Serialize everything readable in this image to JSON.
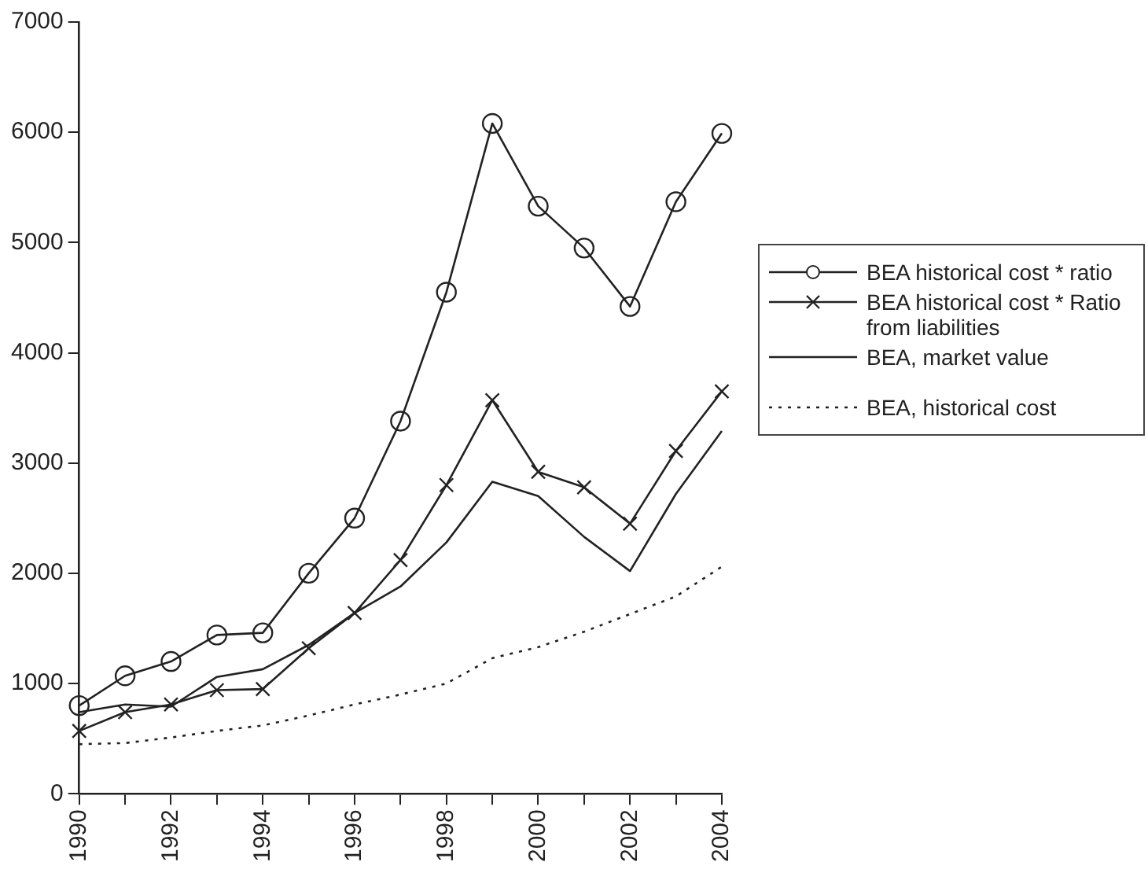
{
  "chart_data": {
    "type": "line",
    "x": [
      1990,
      1991,
      1992,
      1993,
      1994,
      1995,
      1996,
      1997,
      1998,
      1999,
      2000,
      2001,
      2002,
      2003,
      2004
    ],
    "xlim": [
      1990,
      2004
    ],
    "xticks": [
      1990,
      {
        "value": 1991,
        "label": null
      },
      1992,
      {
        "value": 1993,
        "label": null
      },
      1994,
      {
        "value": 1995,
        "label": null
      },
      1996,
      {
        "value": 1997,
        "label": null
      },
      1998,
      {
        "value": 1999,
        "label": null
      },
      2000,
      {
        "value": 2001,
        "label": null
      },
      2002,
      {
        "value": 2003,
        "label": null
      },
      2004
    ],
    "ylim": [
      0,
      7000
    ],
    "yticks": [
      0,
      1000,
      2000,
      3000,
      4000,
      5000,
      6000,
      7000
    ],
    "grid": false,
    "legend": "right",
    "series": [
      {
        "name": "BEA historical cost * ratio",
        "color": "#222222",
        "marker": "circle",
        "line_style": "solid",
        "values": [
          800,
          1070,
          1200,
          1440,
          1460,
          2000,
          2500,
          3380,
          4550,
          6080,
          5330,
          4950,
          4420,
          5370,
          5990
        ]
      },
      {
        "name": "BEA historical cost * Ratio from liabilities",
        "color": "#222222",
        "marker": "cross",
        "line_style": "solid",
        "values": [
          570,
          740,
          810,
          940,
          950,
          1320,
          1640,
          2120,
          2800,
          3570,
          2920,
          2780,
          2450,
          3110,
          3650
        ]
      },
      {
        "name": "BEA, market value",
        "color": "#222222",
        "marker": "none",
        "line_style": "solid",
        "values": [
          740,
          810,
          790,
          1060,
          1130,
          1350,
          1640,
          1880,
          2280,
          2830,
          2700,
          2330,
          2020,
          2720,
          3290
        ]
      },
      {
        "name": "BEA, historical cost",
        "color": "#222222",
        "marker": "none",
        "line_style": "dotted",
        "values": [
          450,
          460,
          510,
          570,
          620,
          710,
          810,
          900,
          1000,
          1230,
          1330,
          1470,
          1630,
          1790,
          2060
        ]
      }
    ]
  }
}
